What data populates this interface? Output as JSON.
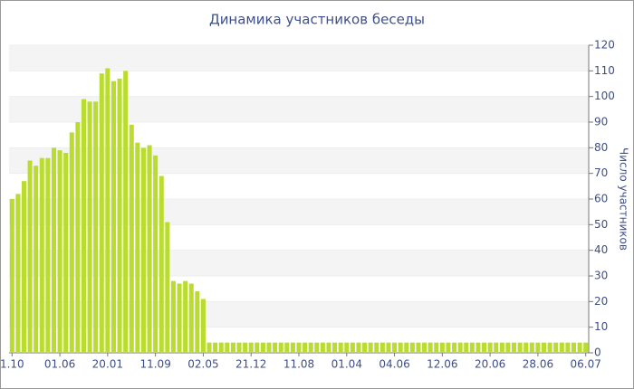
{
  "chart_data": {
    "type": "bar",
    "title": "Динамика участников беседы",
    "y_axis_label": "Число участников",
    "color": "#b9dc2f",
    "grid": true,
    "ylim": [
      0,
      120
    ],
    "yticks": [
      0,
      10,
      20,
      30,
      40,
      50,
      60,
      70,
      80,
      90,
      100,
      110,
      120
    ],
    "categories": [
      "1.10",
      null,
      null,
      null,
      null,
      null,
      null,
      null,
      "01.06",
      null,
      null,
      null,
      null,
      null,
      null,
      null,
      "20.01",
      null,
      null,
      null,
      null,
      null,
      null,
      null,
      "11.09",
      null,
      null,
      null,
      null,
      null,
      null,
      null,
      "02.05",
      null,
      null,
      null,
      null,
      null,
      null,
      null,
      "21.12",
      null,
      null,
      null,
      null,
      null,
      null,
      null,
      "11.08",
      null,
      null,
      null,
      null,
      null,
      null,
      null,
      "01.04",
      null,
      null,
      null,
      null,
      null,
      null,
      null,
      "04.06",
      null,
      null,
      null,
      null,
      null,
      null,
      null,
      "12.06",
      null,
      null,
      null,
      null,
      null,
      null,
      null,
      "20.06",
      null,
      null,
      null,
      null,
      null,
      null,
      null,
      "28.06",
      null,
      null,
      null,
      null,
      null,
      null,
      null,
      "06.07"
    ],
    "values": [
      60,
      62,
      67,
      75,
      73,
      76,
      76,
      80,
      79,
      78,
      86,
      90,
      99,
      98,
      98,
      109,
      111,
      106,
      107,
      110,
      89,
      82,
      80,
      81,
      77,
      69,
      51,
      28,
      27,
      28,
      27,
      24,
      21,
      4,
      4,
      4,
      4,
      4,
      4,
      4,
      4,
      4,
      4,
      4,
      4,
      4,
      4,
      4,
      4,
      4,
      4,
      4,
      4,
      4,
      4,
      4,
      4,
      4,
      4,
      4,
      4,
      4,
      4,
      4,
      4,
      4,
      4,
      4,
      4,
      4,
      4,
      4,
      4,
      4,
      4,
      4,
      4,
      4,
      4,
      4,
      4,
      4,
      4,
      4,
      4,
      4,
      4,
      4,
      4,
      4,
      4,
      4,
      4,
      4,
      4,
      4,
      4
    ]
  }
}
